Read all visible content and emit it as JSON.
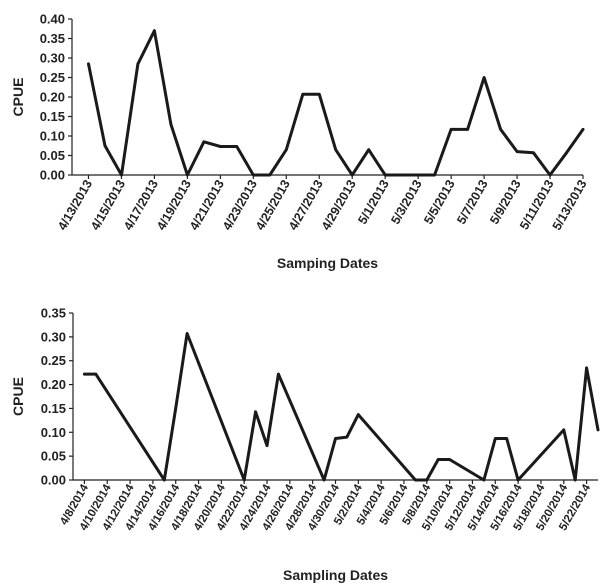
{
  "chart_data": [
    {
      "type": "line",
      "title": "",
      "xlabel": "Samping Dates",
      "ylabel": "CPUE",
      "ylim": [
        0,
        0.4
      ],
      "yticks": [
        "0.00",
        "0.05",
        "0.10",
        "0.15",
        "0.20",
        "0.25",
        "0.30",
        "0.35",
        "0.40"
      ],
      "xticks": [
        "4/13/2013",
        "4/15/2013",
        "4/17/2013",
        "4/19/2013",
        "4/21/2013",
        "4/23/2013",
        "4/25/2013",
        "4/27/2013",
        "4/29/2013",
        "5/1/2013",
        "5/3/2013",
        "5/5/2013",
        "5/7/2013",
        "5/9/2013",
        "5/11/2013",
        "5/13/2013"
      ],
      "x": [
        "4/13/2013",
        "4/14/2013",
        "4/15/2013",
        "4/16/2013",
        "4/17/2013",
        "4/18/2013",
        "4/19/2013",
        "4/20/2013",
        "4/21/2013",
        "4/22/2013",
        "4/23/2013",
        "4/24/2013",
        "4/25/2013",
        "4/26/2013",
        "4/27/2013",
        "4/28/2013",
        "4/29/2013",
        "4/30/2013",
        "5/1/2013",
        "5/2/2013",
        "5/3/2013",
        "5/4/2013",
        "5/5/2013",
        "5/6/2013",
        "5/7/2013",
        "5/8/2013",
        "5/9/2013",
        "5/10/2013",
        "5/11/2013",
        "5/12/2013",
        "5/13/2013"
      ],
      "series": [
        {
          "values": [
            0.285,
            0.075,
            0.0,
            0.285,
            0.37,
            0.13,
            0.0,
            0.085,
            0.073,
            0.073,
            0.0,
            0.0,
            0.065,
            0.207,
            0.207,
            0.065,
            0.0,
            0.065,
            0.0,
            0.0,
            0.0,
            0.0,
            0.117,
            0.117,
            0.25,
            0.117,
            0.06,
            0.057,
            0.0,
            0.057,
            0.117
          ]
        }
      ],
      "grid": false,
      "line_color": "#1a1a1a"
    },
    {
      "type": "line",
      "title": "",
      "xlabel": "Sampling Dates",
      "ylabel": "CPUE",
      "ylim": [
        0,
        0.35
      ],
      "yticks": [
        "0.00",
        "0.05",
        "0.10",
        "0.15",
        "0.20",
        "0.25",
        "0.30",
        "0.35"
      ],
      "xticks": [
        "4/8/2014",
        "4/10/2014",
        "4/12/2014",
        "4/14/2014",
        "4/16/2014",
        "4/18/2014",
        "4/20/2014",
        "4/22/2014",
        "4/24/2014",
        "4/26/2014",
        "4/28/2014",
        "4/30/2014",
        "5/2/2014",
        "5/4/2014",
        "5/6/2014",
        "5/8/2014",
        "5/10/2014",
        "5/12/2014",
        "5/14/2014",
        "5/16/2014",
        "5/18/2014",
        "5/20/2014",
        "5/22/2014"
      ],
      "x": [
        "4/8/2014",
        "4/9/2014",
        "4/15/2014",
        "4/16/2014",
        "4/17/2014",
        "4/22/2014",
        "4/23/2014",
        "4/24/2014",
        "4/25/2014",
        "4/29/2014",
        "4/30/2014",
        "5/1/2014",
        "5/2/2014",
        "5/7/2014",
        "5/8/2014",
        "5/9/2014",
        "5/10/2014",
        "5/13/2014",
        "5/14/2014",
        "5/15/2014",
        "5/16/2014",
        "5/20/2014",
        "5/21/2014",
        "5/22/2014",
        "5/23/2014"
      ],
      "series": [
        {
          "values": [
            0.222,
            0.222,
            0.0,
            0.15,
            0.307,
            0.0,
            0.143,
            0.072,
            0.222,
            0.0,
            0.087,
            0.09,
            0.137,
            0.0,
            0.0,
            0.043,
            0.043,
            0.0,
            0.087,
            0.087,
            0.0,
            0.105,
            0.0,
            0.235,
            0.105
          ]
        }
      ],
      "grid": false,
      "line_color": "#1a1a1a"
    }
  ]
}
